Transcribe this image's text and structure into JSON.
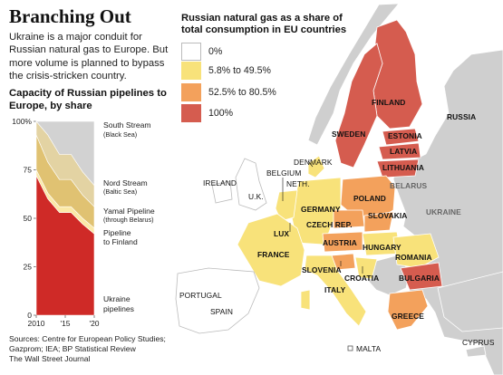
{
  "headline": {
    "title": "Branching Out",
    "intro": "Ukraine is a major conduit for Russian natural gas to Europe. But more volume is planned to bypass the crisis-stricken country."
  },
  "chart_data": {
    "type": "area",
    "title": "Capacity of Russian pipelines to Europe, by share",
    "x": [
      2010,
      2012,
      2014,
      2016,
      2018,
      2020
    ],
    "x_tick_labels": [
      "2010",
      "'15",
      "'20"
    ],
    "x_tick_values": [
      2010,
      2015,
      2020
    ],
    "y_tick_labels": [
      "100%",
      "75",
      "50",
      "25",
      "0"
    ],
    "y_tick_values": [
      100,
      75,
      50,
      25,
      0
    ],
    "ylim": [
      0,
      100
    ],
    "stacked": true,
    "series": [
      {
        "name": "Ukraine pipelines",
        "color": "#cf2a27",
        "values": [
          72,
          60,
          53,
          53,
          47,
          42
        ]
      },
      {
        "name": "Pipeline to Finland",
        "color": "#fbe9a7",
        "values": [
          3,
          3,
          3,
          3,
          3,
          3
        ]
      },
      {
        "name": "Yamal Pipeline",
        "sublabel": "(through Belarus)",
        "color": "#e0c272",
        "values": [
          18,
          16,
          14,
          14,
          12,
          11
        ]
      },
      {
        "name": "Nord Stream",
        "sublabel": "(Baltic Sea)",
        "color": "#e3d3a3",
        "values": [
          7,
          14,
          13,
          13,
          12,
          11
        ]
      },
      {
        "name": "South Stream",
        "sublabel": "(Black Sea)",
        "color": "#d2d2d2",
        "values": [
          0,
          7,
          17,
          17,
          26,
          33
        ]
      }
    ]
  },
  "source": "Sources: Centre for European Policy Studies; Gazprom; IEA; BP Statistical Review",
  "credit": "The Wall Street Journal",
  "map": {
    "legend_title": "Russian natural gas as a share of total consumption in EU countries",
    "legend": [
      {
        "label": "0%",
        "color": "#ffffff"
      },
      {
        "label": "5.8% to 49.5%",
        "color": "#f8e27a"
      },
      {
        "label": "52.5% to 80.5%",
        "color": "#f3a15c"
      },
      {
        "label": "100%",
        "color": "#d55c4f"
      }
    ],
    "colors": {
      "sea": "#ffffff",
      "non_eu": "#cfcfcf",
      "border": "#ffffff"
    },
    "labels": {
      "finland": "FINLAND",
      "russia": "RUSSIA",
      "sweden": "SWEDEN",
      "estonia": "ESTONIA",
      "latvia": "LATVIA",
      "lithuania": "LITHUANIA",
      "denmark": "DENMARK",
      "belgium": "BELGIUM",
      "ireland": "IRELAND",
      "neth": "NETH.",
      "uk": "U.K.",
      "belarus": "BELARUS",
      "poland": "POLAND",
      "germany": "GERMANY",
      "czech": "CZECH REP.",
      "slovakia": "SLOVAKIA",
      "ukraine": "UKRAINE",
      "lux": "LUX",
      "austria": "AUSTRIA",
      "hungary": "HUNGARY",
      "france": "FRANCE",
      "romania": "ROMANIA",
      "slovenia": "SLOVENIA",
      "croatia": "CROATIA",
      "bulgaria": "BULGARIA",
      "italy": "ITALY",
      "portugal": "PORTUGAL",
      "spain": "SPAIN",
      "greece": "GREECE",
      "malta": "MALTA",
      "cyprus": "CYPRUS"
    }
  }
}
